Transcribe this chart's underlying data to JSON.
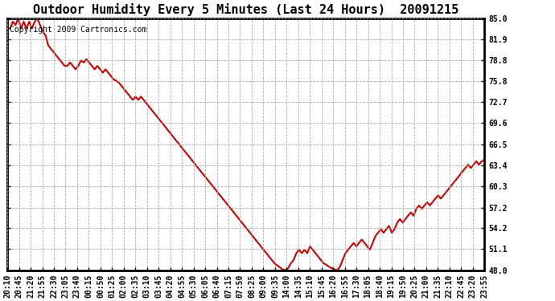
{
  "title": "Outdoor Humidity Every 5 Minutes (Last 24 Hours)  20091215",
  "copyright_text": "Copyright 2009 Cartronics.com",
  "line_color": "#cc0000",
  "bg_color": "#ffffff",
  "grid_color": "#aaaaaa",
  "yticks": [
    48.0,
    51.1,
    54.2,
    57.2,
    60.3,
    63.4,
    66.5,
    69.6,
    72.7,
    75.8,
    78.8,
    81.9,
    85.0
  ],
  "ylim": [
    48.0,
    85.0
  ],
  "xtick_labels": [
    "20:10",
    "20:45",
    "21:20",
    "21:55",
    "22:30",
    "23:05",
    "23:40",
    "00:15",
    "00:50",
    "01:25",
    "02:00",
    "02:35",
    "03:10",
    "03:45",
    "04:20",
    "04:55",
    "05:30",
    "06:05",
    "06:40",
    "07:15",
    "07:50",
    "08:25",
    "09:00",
    "09:35",
    "14:00",
    "14:35",
    "15:10",
    "15:45",
    "16:20",
    "16:55",
    "17:30",
    "18:05",
    "18:40",
    "19:15",
    "19:50",
    "20:25",
    "21:00",
    "21:35",
    "22:10",
    "22:45",
    "23:20",
    "23:55"
  ],
  "humidity_data": [
    83.5,
    83.5,
    84.5,
    84.0,
    85.0,
    83.5,
    84.5,
    83.5,
    84.5,
    83.5,
    84.5,
    85.0,
    84.0,
    83.0,
    82.5,
    81.0,
    80.5,
    80.0,
    79.5,
    79.0,
    78.5,
    78.0,
    78.0,
    78.5,
    78.0,
    77.5,
    78.0,
    78.8,
    78.5,
    79.0,
    78.5,
    78.0,
    77.5,
    78.0,
    77.5,
    77.0,
    77.5,
    77.0,
    76.5,
    76.0,
    75.8,
    75.5,
    75.0,
    74.5,
    74.0,
    73.5,
    73.0,
    73.5,
    73.0,
    73.5,
    73.0,
    72.5,
    72.0,
    71.5,
    71.0,
    70.5,
    70.0,
    69.5,
    69.0,
    68.5,
    68.0,
    67.5,
    67.0,
    66.5,
    66.0,
    65.5,
    65.0,
    64.5,
    64.0,
    63.5,
    63.0,
    62.5,
    62.0,
    61.5,
    61.0,
    60.5,
    60.0,
    59.5,
    59.0,
    58.5,
    58.0,
    57.5,
    57.0,
    56.5,
    56.0,
    55.5,
    55.0,
    54.5,
    54.0,
    53.5,
    53.0,
    52.5,
    52.0,
    51.5,
    51.0,
    50.5,
    50.0,
    49.5,
    49.0,
    48.7,
    48.4,
    48.1,
    48.0,
    48.3,
    49.0,
    49.5,
    50.5,
    51.0,
    50.5,
    51.0,
    50.5,
    51.5,
    51.0,
    50.5,
    50.0,
    49.5,
    49.0,
    48.8,
    48.5,
    48.3,
    48.1,
    48.0,
    48.5,
    49.5,
    50.5,
    51.0,
    51.5,
    52.0,
    51.5,
    52.0,
    52.5,
    52.0,
    51.5,
    51.0,
    52.0,
    53.0,
    53.5,
    54.0,
    53.5,
    54.0,
    54.5,
    53.5,
    54.0,
    55.0,
    55.5,
    55.0,
    55.5,
    56.0,
    56.5,
    56.0,
    57.0,
    57.5,
    57.0,
    57.5,
    58.0,
    57.5,
    58.0,
    58.5,
    59.0,
    58.5,
    59.0,
    59.5,
    60.0,
    60.5,
    61.0,
    61.5,
    62.0,
    62.5,
    63.0,
    63.5,
    63.0,
    63.5,
    64.0,
    63.5,
    64.0,
    64.2
  ],
  "figwidth": 6.9,
  "figheight": 3.75,
  "dpi": 100,
  "title_fontsize": 11,
  "tick_fontsize": 7,
  "copyright_fontsize": 7
}
